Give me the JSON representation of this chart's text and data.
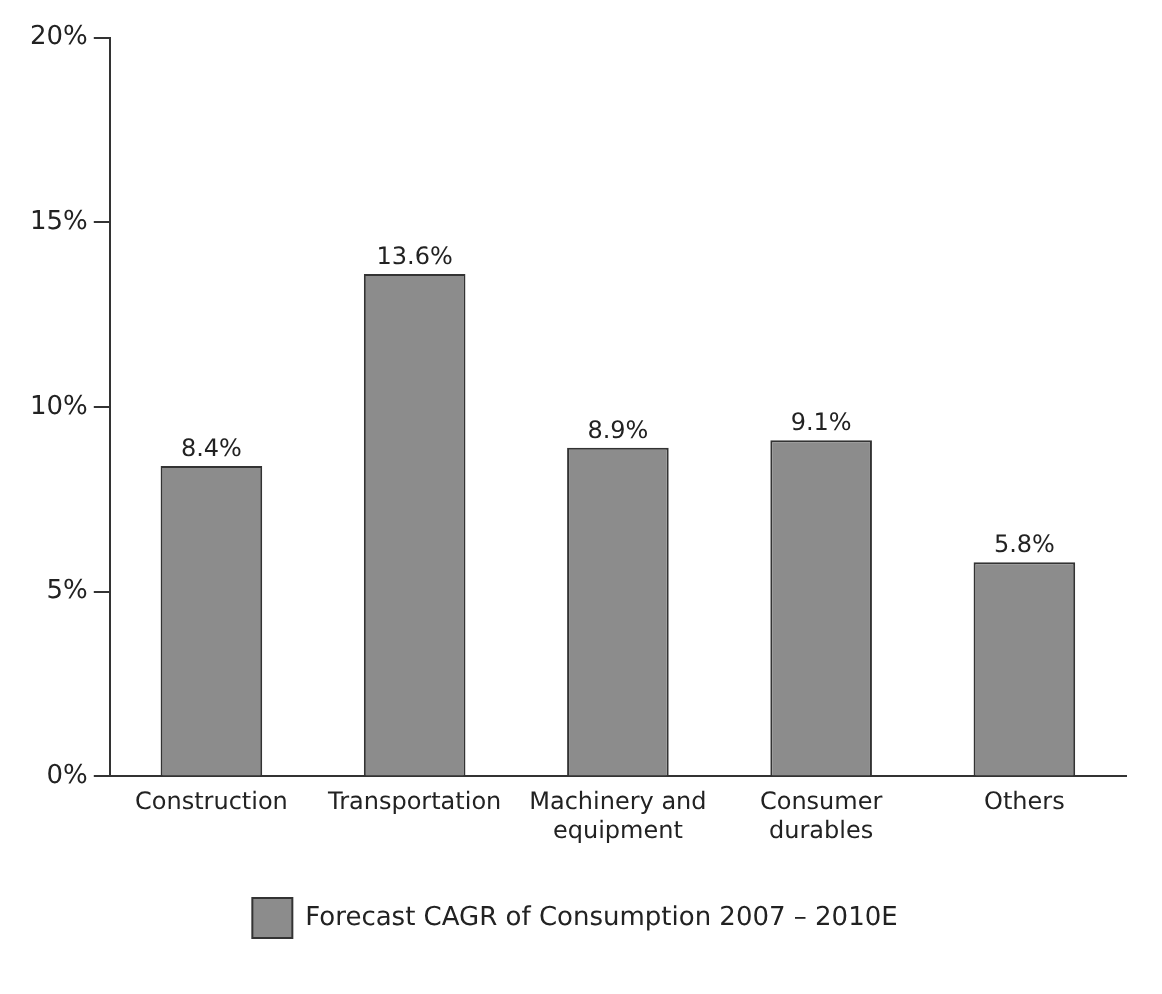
{
  "chart_data": {
    "type": "bar",
    "categories": [
      "Construction",
      "Transportation",
      "Machinery and equipment",
      "Consumer durables",
      "Others"
    ],
    "series": [
      {
        "name": "Forecast CAGR of Consumption 2007 – 2010E",
        "color": "#8c8c8c",
        "values": [
          8.4,
          13.6,
          8.9,
          9.1,
          5.8
        ],
        "value_labels": [
          "8.4%",
          "13.6%",
          "8.9%",
          "9.1%",
          "5.8%"
        ]
      }
    ],
    "ylim": [
      0,
      20
    ],
    "yticks": [
      {
        "value": 0,
        "label": "0%"
      },
      {
        "value": 5,
        "label": "5%"
      },
      {
        "value": 10,
        "label": "10%"
      },
      {
        "value": 15,
        "label": "15%"
      },
      {
        "value": 20,
        "label": "20%"
      }
    ],
    "grid": false,
    "legend": "bottom"
  }
}
